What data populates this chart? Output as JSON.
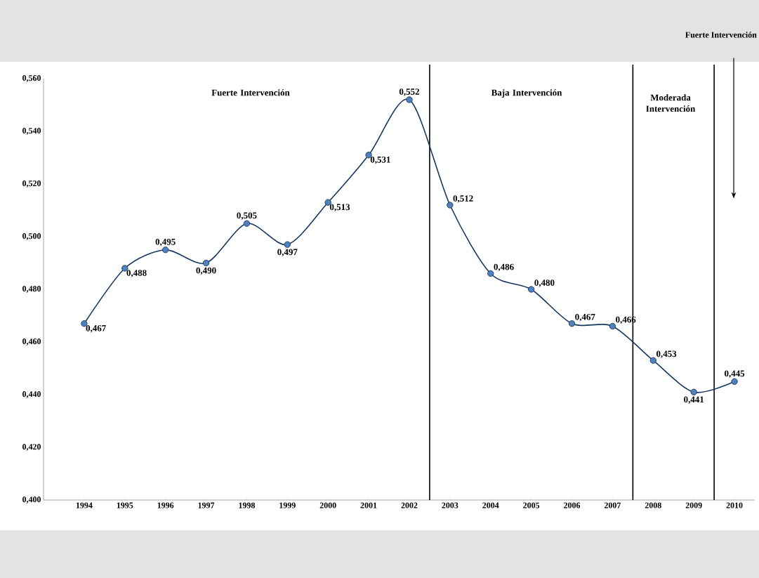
{
  "chart_data": {
    "type": "line",
    "x": [
      1994,
      1995,
      1996,
      1997,
      1998,
      1999,
      2000,
      2001,
      2002,
      2003,
      2004,
      2005,
      2006,
      2007,
      2008,
      2009,
      2010
    ],
    "values": [
      0.467,
      0.488,
      0.495,
      0.49,
      0.505,
      0.497,
      0.513,
      0.531,
      0.552,
      0.512,
      0.486,
      0.48,
      0.467,
      0.466,
      0.453,
      0.441,
      0.445
    ],
    "value_labels": [
      "0,467",
      "0,488",
      "0,495",
      "0,490",
      "0,505",
      "0,497",
      "0,513",
      "0,531",
      "0,552",
      "0,512",
      "0,486",
      "0,480",
      "0,467",
      "0,466",
      "0,453",
      "0,441",
      "0,445"
    ],
    "color": "#4f81bd",
    "marker": "circle",
    "xlim": [
      1993,
      2010.5
    ],
    "xticks": [
      1994,
      1995,
      1996,
      1997,
      1998,
      1999,
      2000,
      2001,
      2002,
      2003,
      2004,
      2005,
      2006,
      2007,
      2008,
      2009,
      2010
    ],
    "ylim": [
      0.4,
      0.56
    ],
    "yticks": [
      {
        "value": 0.4,
        "label": "0,400"
      },
      {
        "value": 0.42,
        "label": "0,420"
      },
      {
        "value": 0.44,
        "label": "0,440"
      },
      {
        "value": 0.46,
        "label": "0,460"
      },
      {
        "value": 0.48,
        "label": "0,480"
      },
      {
        "value": 0.5,
        "label": "0,500"
      },
      {
        "value": 0.52,
        "label": "0,520"
      },
      {
        "value": 0.54,
        "label": "0,540"
      },
      {
        "value": 0.56,
        "label": "0,560"
      }
    ],
    "ref_lines": [
      {
        "axis": "x",
        "value": 2002.5
      },
      {
        "axis": "x",
        "value": 2007.5
      },
      {
        "axis": "x",
        "value": 2009.5
      }
    ],
    "annotations": [
      "Fuerte Intervención",
      "Baja Intervención",
      "Moderada Intervención",
      "Fuerte Intervención"
    ]
  }
}
